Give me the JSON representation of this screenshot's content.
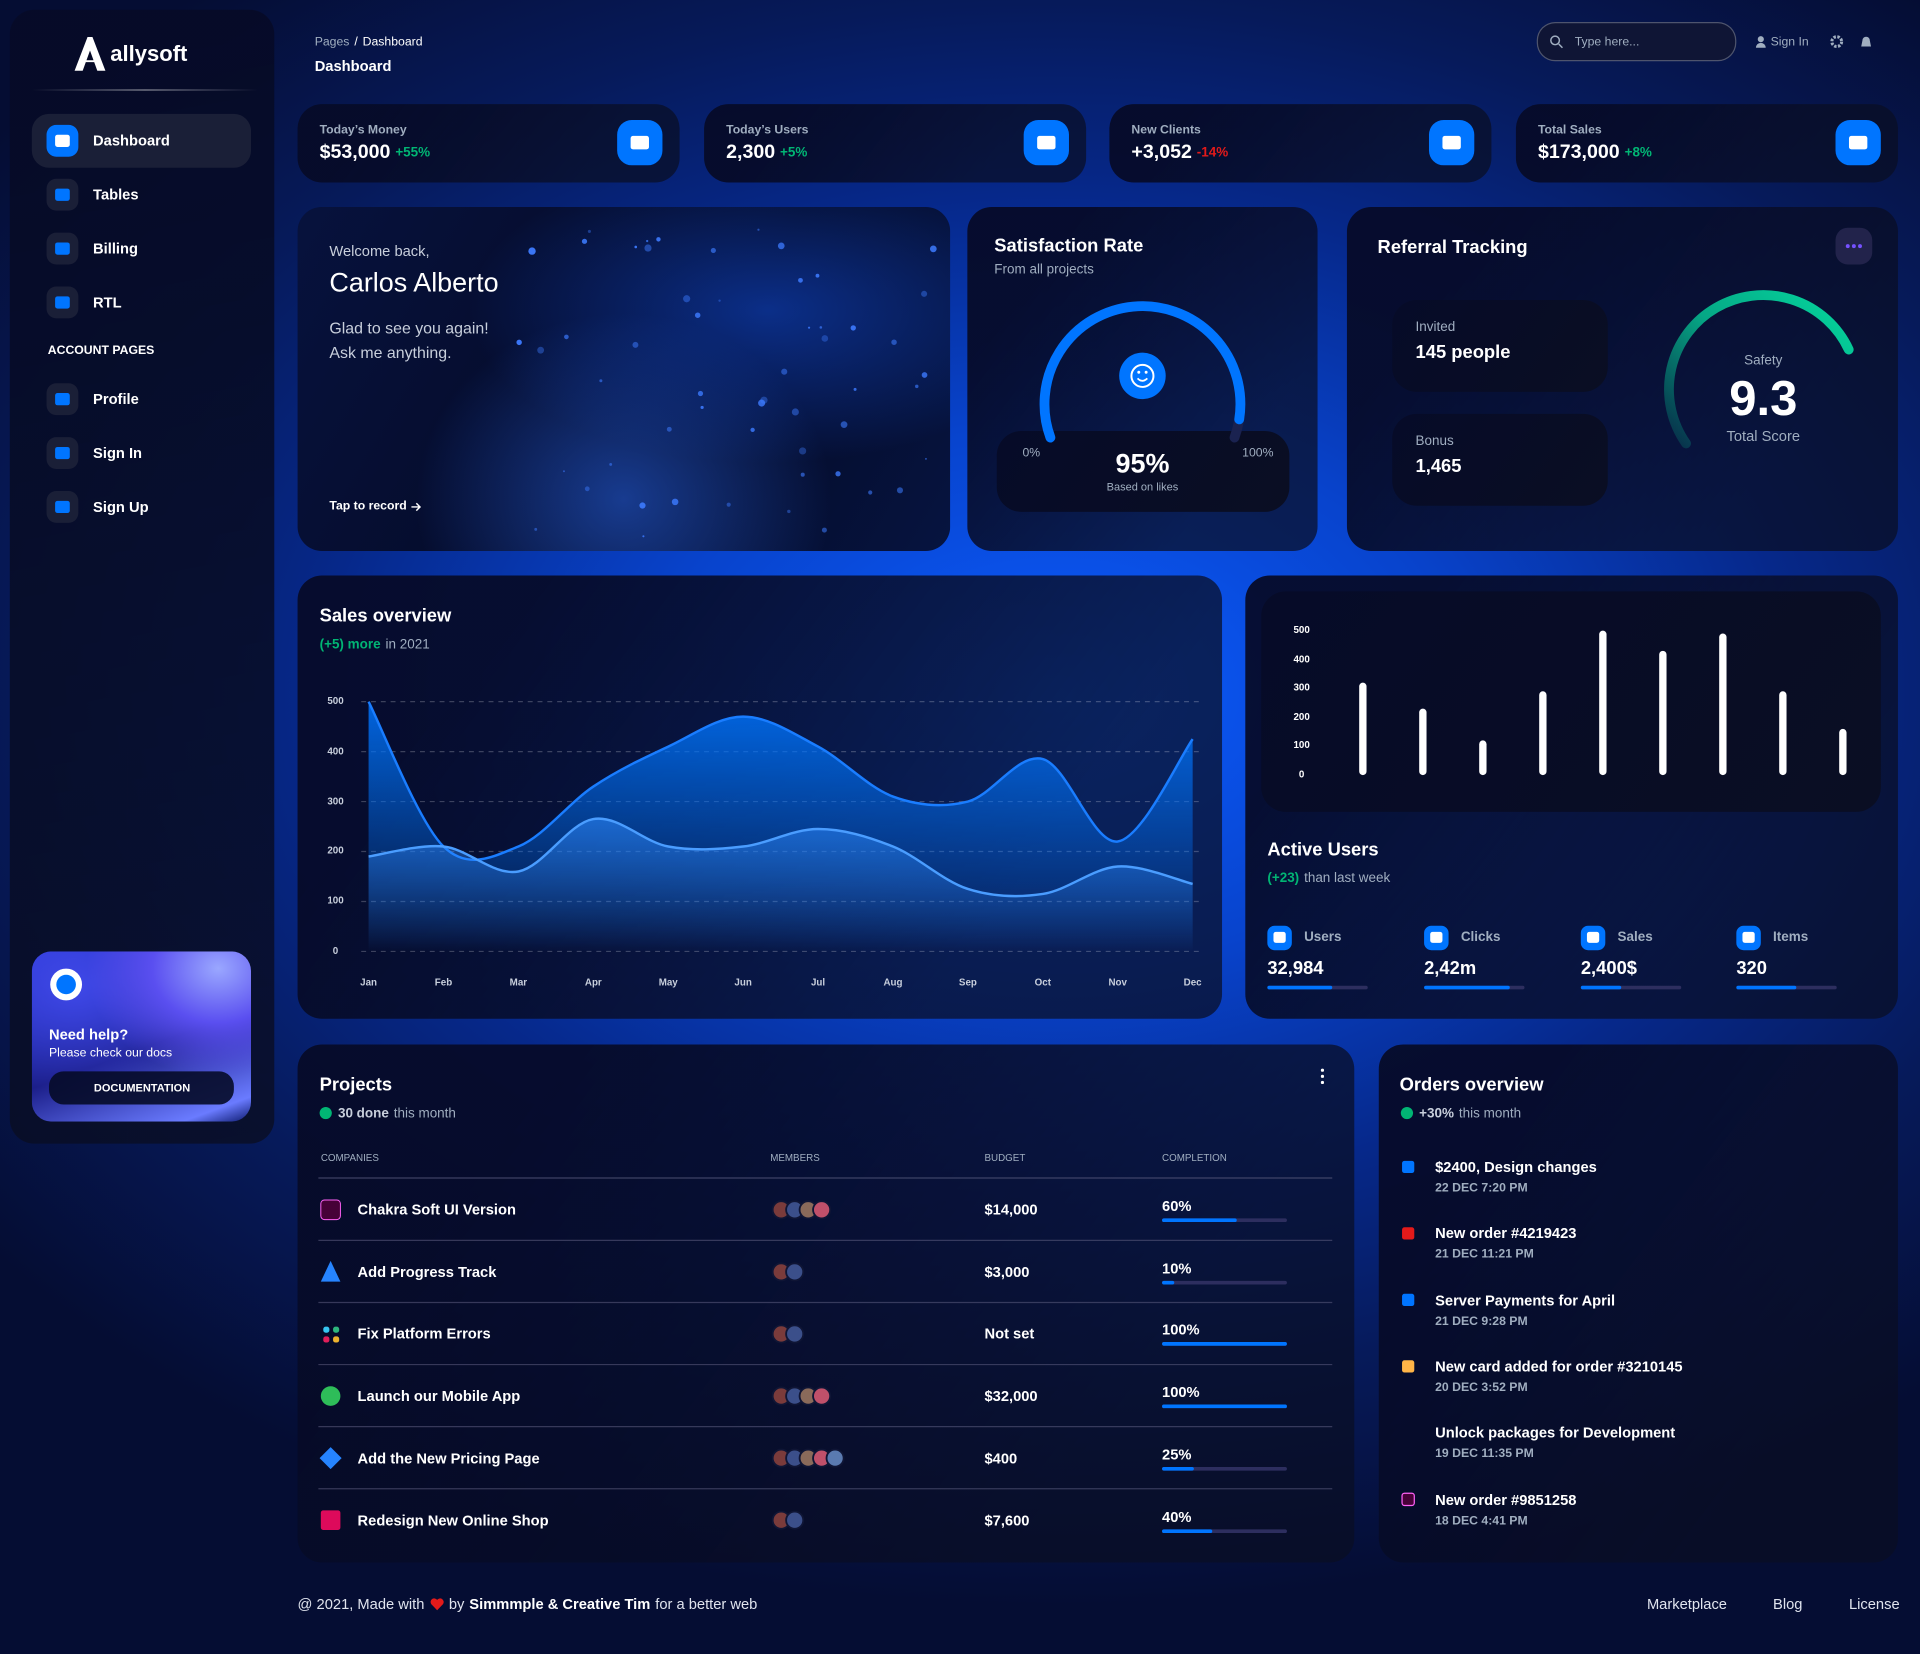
{
  "sidebar": {
    "brand": "allysoft",
    "nav": [
      "Dashboard",
      "Tables",
      "Billing",
      "RTL"
    ],
    "account_title": "ACCOUNT PAGES",
    "account_nav": [
      "Profile",
      "Sign In",
      "Sign Up"
    ],
    "help": {
      "title": "Need help?",
      "text": "Please check our docs",
      "button": "DOCUMENTATION"
    }
  },
  "header": {
    "breadcrumb": [
      "Pages",
      "/",
      "Dashboard"
    ],
    "title": "Dashboard",
    "search_placeholder": "Type here...",
    "sign_in": "Sign In"
  },
  "stats": [
    {
      "label": "Today’s Money",
      "value": "$53,000",
      "change": "+55%",
      "change_color": "#01b574"
    },
    {
      "label": "Today’s Users",
      "value": "2,300",
      "change": "+5%",
      "change_color": "#01b574"
    },
    {
      "label": "New Clients",
      "value": "+3,052",
      "change": "-14%",
      "change_color": "#e31a1a"
    },
    {
      "label": "Total Sales",
      "value": "$173,000",
      "change": "+8%",
      "change_color": "#01b574"
    }
  ],
  "welcome": {
    "greeting": "Welcome back,",
    "name": "Carlos Alberto",
    "lines": [
      "Glad to see you again!",
      "Ask me anything."
    ],
    "action": "Tap to record"
  },
  "satisfaction": {
    "title": "Satisfaction Rate",
    "subtitle": "From all projects",
    "min": {
      "value": 0,
      "label": "0%"
    },
    "max": {
      "value": 100,
      "label": "100%"
    },
    "value": 95,
    "value_label": "95%",
    "note": "Based on likes",
    "color": "#0075ff"
  },
  "referral": {
    "title": "Referral Tracking",
    "invited_label": "Invited",
    "invited_value": "145 people",
    "bonus_label": "Bonus",
    "bonus_value": "1,465",
    "score_label": "Safety",
    "score": 9.3,
    "score_caption": "Total Score"
  },
  "sales_overview": {
    "title": "Sales overview",
    "highlight": "(+5) more",
    "subtitle": "in 2021",
    "chart": {
      "type": "area",
      "categories": [
        "Jan",
        "Feb",
        "Mar",
        "Apr",
        "May",
        "Jun",
        "Jul",
        "Aug",
        "Sep",
        "Oct",
        "Nov",
        "Dec"
      ],
      "series": [
        {
          "color": "#0075ff",
          "values": [
            500,
            210,
            210,
            330,
            410,
            470,
            410,
            310,
            300,
            385,
            220,
            425
          ]
        },
        {
          "color": "#2e8bff",
          "values": [
            190,
            210,
            160,
            265,
            210,
            210,
            245,
            210,
            125,
            115,
            170,
            135
          ]
        }
      ],
      "ylim": [
        0,
        500
      ],
      "yticks": [
        0,
        100,
        200,
        300,
        400,
        500
      ],
      "grid": true
    }
  },
  "active_users": {
    "chart": {
      "type": "bar",
      "values": [
        320,
        230,
        120,
        290,
        500,
        430,
        490,
        290,
        160
      ],
      "color": "#ffffff",
      "ylim": [
        0,
        500
      ],
      "yticks": [
        0,
        100,
        200,
        300,
        400,
        500
      ],
      "grid": false
    },
    "title": "Active Users",
    "highlight": "(+23)",
    "subtitle": "than last week",
    "stats": [
      {
        "label": "Users",
        "value": "32,984",
        "progress": 0.65
      },
      {
        "label": "Clicks",
        "value": "2,42m",
        "progress": 0.85
      },
      {
        "label": "Sales",
        "value": "2,400$",
        "progress": 0.4
      },
      {
        "label": "Items",
        "value": "320",
        "progress": 0.6
      }
    ]
  },
  "projects": {
    "title": "Projects",
    "done": "30 done",
    "subtitle": "this month",
    "columns": [
      "COMPANIES",
      "MEMBERS",
      "BUDGET",
      "COMPLETION"
    ],
    "rows": [
      {
        "company": "Chakra Soft UI Version",
        "members": 4,
        "budget": "$14,000",
        "completion": 60,
        "completion_label": "60%"
      },
      {
        "company": "Add Progress Track",
        "members": 2,
        "budget": "$3,000",
        "completion": 10,
        "completion_label": "10%"
      },
      {
        "company": "Fix Platform Errors",
        "members": 2,
        "budget": "Not set",
        "completion": 100,
        "completion_label": "100%"
      },
      {
        "company": "Launch our Mobile App",
        "members": 4,
        "budget": "$32,000",
        "completion": 100,
        "completion_label": "100%"
      },
      {
        "company": "Add the New Pricing Page",
        "members": 5,
        "budget": "$400",
        "completion": 25,
        "completion_label": "25%"
      },
      {
        "company": "Redesign New Online Shop",
        "members": 2,
        "budget": "$7,600",
        "completion": 40,
        "completion_label": "40%"
      }
    ]
  },
  "orders": {
    "title": "Orders overview",
    "highlight": "+30%",
    "subtitle": "this month",
    "items": [
      {
        "title": "$2400, Design changes",
        "date": "22 DEC 7:20 PM"
      },
      {
        "title": "New order #4219423",
        "date": "21 DEC 11:21 PM"
      },
      {
        "title": "Server Payments for April",
        "date": "21 DEC 9:28 PM"
      },
      {
        "title": "New card added for order #3210145",
        "date": "20 DEC 3:52 PM"
      },
      {
        "title": "Unlock packages for Development",
        "date": "19 DEC 11:35 PM"
      },
      {
        "title": "New order #9851258",
        "date": "18 DEC 4:41 PM"
      }
    ]
  },
  "footer": {
    "text_start": "@ 2021, Made with",
    "by": "by",
    "authors": "Simmmple & Creative Tim",
    "text_end": "for a better web",
    "links": [
      "Marketplace",
      "Blog",
      "License"
    ]
  }
}
